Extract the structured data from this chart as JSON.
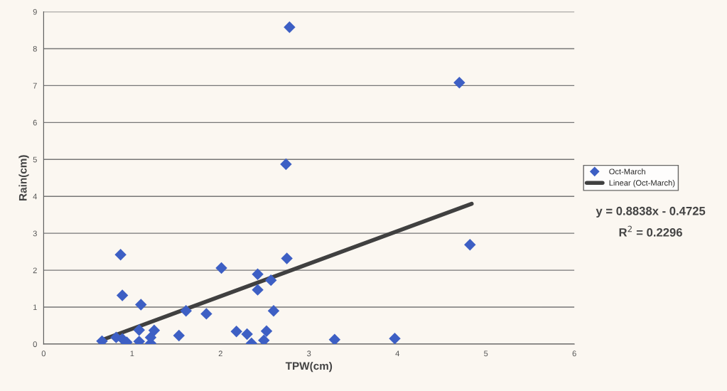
{
  "chart_data": {
    "type": "scatter",
    "xlabel": "TPW(cm)",
    "ylabel": "Rain(cm)",
    "xlim": [
      0,
      6
    ],
    "xticks": [
      0,
      1,
      2,
      3,
      4,
      5,
      6
    ],
    "ylim": [
      0,
      9
    ],
    "yticks": [
      0,
      1,
      2,
      3,
      4,
      5,
      6,
      7,
      8,
      9
    ],
    "grid": "y",
    "legend": "right",
    "marker": "diamond",
    "series": [
      {
        "name": "Oct-March",
        "color": "#3d5fc4",
        "x": [
          0.66,
          0.87,
          0.89,
          0.82,
          0.89,
          0.94,
          1.1,
          1.08,
          1.08,
          1.21,
          1.21,
          1.25,
          1.53,
          1.61,
          1.84,
          2.01,
          2.18,
          2.3,
          2.35,
          2.42,
          2.42,
          2.49,
          2.52,
          2.57,
          2.6,
          2.75,
          2.74,
          2.78,
          3.29,
          3.97,
          4.7,
          4.82
        ],
        "values": [
          0.08,
          2.42,
          1.32,
          0.18,
          0.14,
          0.05,
          1.07,
          0.38,
          0.07,
          0.02,
          0.18,
          0.37,
          0.23,
          0.9,
          0.82,
          2.06,
          0.34,
          0.27,
          0.02,
          1.89,
          1.47,
          0.1,
          0.35,
          1.73,
          0.9,
          2.32,
          4.87,
          8.58,
          0.12,
          0.15,
          7.08,
          2.69
        ]
      },
      {
        "name": "Linear (Oct-March)",
        "type": "line",
        "color": "#404040",
        "line_style": "solid",
        "marker": "none",
        "x": [
          0.67,
          4.84
        ],
        "values": [
          0.12,
          3.8
        ]
      }
    ],
    "annotations": [
      "y = 0.8838x - 0.4725",
      "R$^{2}$ = 0.2296"
    ]
  }
}
